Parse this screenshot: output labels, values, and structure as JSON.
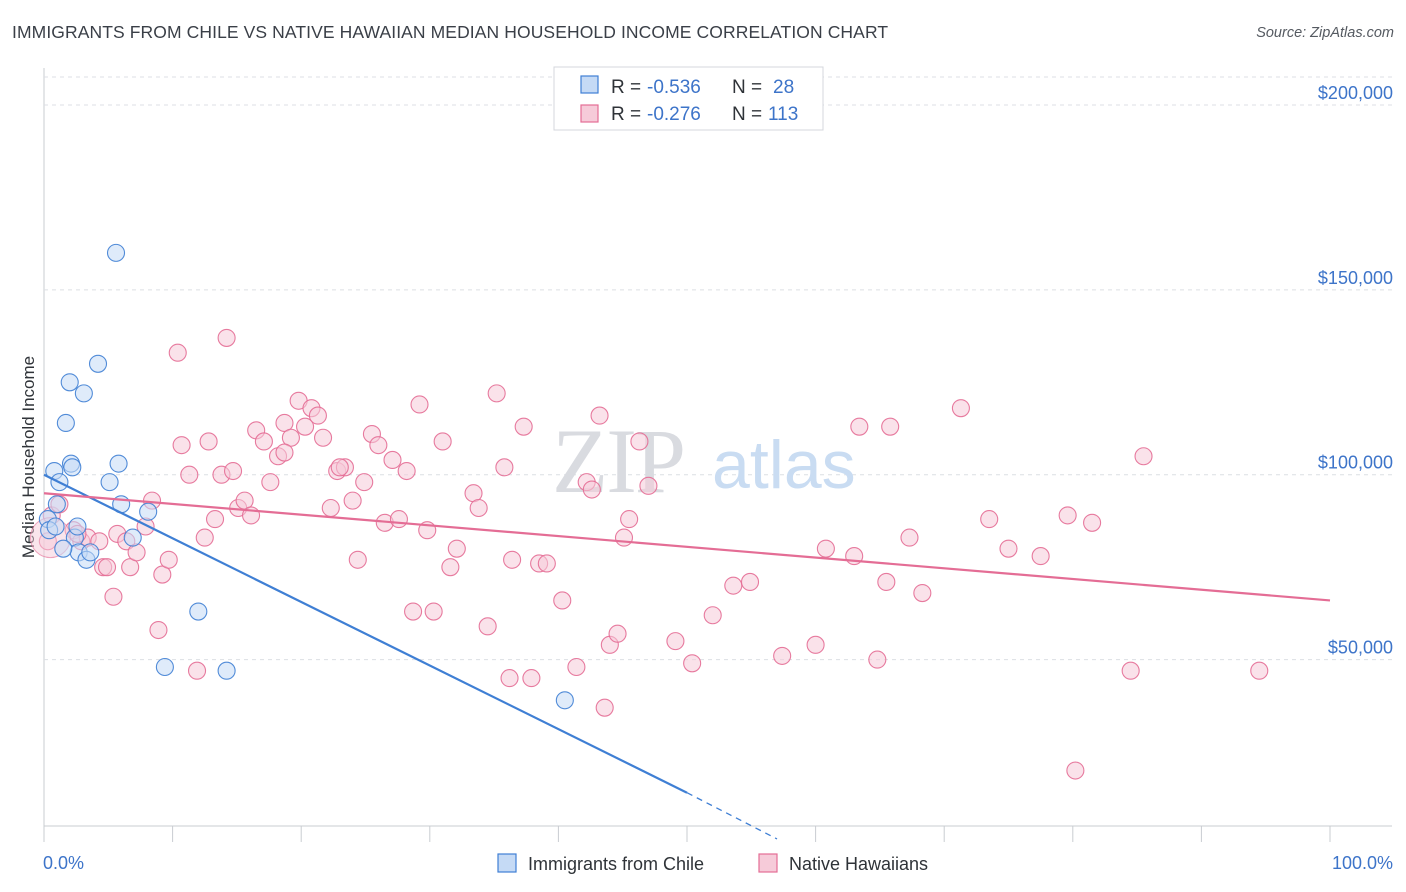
{
  "header": {
    "title": "IMMIGRANTS FROM CHILE VS NATIVE HAWAIIAN MEDIAN HOUSEHOLD INCOME CORRELATION CHART",
    "source": "Source: ZipAtlas.com"
  },
  "watermark": {
    "zip": "ZIP",
    "atlas": "atlas"
  },
  "colors": {
    "blue": "#3f7fd4",
    "blue_fill": "#c5daf5",
    "pink": "#e46d95",
    "pink_fill": "#f6cbd9",
    "tick_text": "#3d74c9",
    "grid": "#dcdfe4"
  },
  "legend": {
    "rows": [
      {
        "r_label": "R = ",
        "r_value": "-0.536",
        "n_label": "N = ",
        "n_value": "28"
      },
      {
        "r_label": "R = ",
        "r_value": "-0.276",
        "n_label": "N = ",
        "n_value": "113"
      }
    ]
  },
  "bottom_legend": {
    "series1": "Immigrants from Chile",
    "series2": "Native Hawaiians"
  },
  "chart_data": {
    "type": "scatter",
    "title": "IMMIGRANTS FROM CHILE VS NATIVE HAWAIIAN MEDIAN HOUSEHOLD INCOME CORRELATION CHART",
    "xlabel": "",
    "ylabel": "Median Household Income",
    "xlim": [
      0,
      100
    ],
    "ylim": [
      5000,
      210000
    ],
    "x_tick_labels": [
      "0.0%",
      "100.0%"
    ],
    "y_ticks": [
      50000,
      100000,
      150000,
      200000
    ],
    "y_tick_labels": [
      "$50,000",
      "$100,000",
      "$150,000",
      "$200,000"
    ],
    "grid": "horizontal dashed",
    "legend_position": "top-center",
    "series": [
      {
        "name": "Immigrants from Chile",
        "color": "#3f7fd4",
        "r": -0.536,
        "n": 28,
        "trend": {
          "x": [
            0,
            50
          ],
          "y": [
            100000,
            14000
          ],
          "extended_to": [
            57,
            1500
          ]
        },
        "points": [
          [
            0.3,
            88000
          ],
          [
            0.4,
            85000
          ],
          [
            0.8,
            101000
          ],
          [
            0.9,
            86000
          ],
          [
            1.0,
            92000
          ],
          [
            1.2,
            98000
          ],
          [
            1.7,
            114000
          ],
          [
            2.0,
            125000
          ],
          [
            2.1,
            103000
          ],
          [
            2.2,
            102000
          ],
          [
            2.4,
            83000
          ],
          [
            2.6,
            86000
          ],
          [
            2.7,
            79000
          ],
          [
            3.1,
            122000
          ],
          [
            3.3,
            77000
          ],
          [
            3.6,
            79000
          ],
          [
            4.2,
            130000
          ],
          [
            5.1,
            98000
          ],
          [
            5.6,
            160000
          ],
          [
            5.8,
            103000
          ],
          [
            6.0,
            92000
          ],
          [
            6.9,
            83000
          ],
          [
            8.1,
            90000
          ],
          [
            9.4,
            48000
          ],
          [
            12.0,
            63000
          ],
          [
            14.2,
            47000
          ],
          [
            40.5,
            39000
          ],
          [
            1.5,
            80000
          ]
        ]
      },
      {
        "name": "Native Hawaiians",
        "color": "#e46d95",
        "r": -0.276,
        "n": 113,
        "trend": {
          "x": [
            0,
            100
          ],
          "y": [
            95000,
            66000
          ]
        },
        "points": [
          [
            0.3,
            82000
          ],
          [
            0.6,
            89000
          ],
          [
            1.2,
            92000
          ],
          [
            2.3,
            85000
          ],
          [
            2.9,
            82000
          ],
          [
            3.4,
            83000
          ],
          [
            4.3,
            82000
          ],
          [
            4.6,
            75000
          ],
          [
            4.9,
            75000
          ],
          [
            5.4,
            67000
          ],
          [
            5.7,
            84000
          ],
          [
            6.4,
            82000
          ],
          [
            6.7,
            75000
          ],
          [
            7.2,
            79000
          ],
          [
            7.9,
            86000
          ],
          [
            8.4,
            93000
          ],
          [
            8.9,
            58000
          ],
          [
            9.2,
            73000
          ],
          [
            9.7,
            77000
          ],
          [
            10.4,
            133000
          ],
          [
            10.7,
            108000
          ],
          [
            11.3,
            100000
          ],
          [
            11.9,
            47000
          ],
          [
            12.5,
            83000
          ],
          [
            12.8,
            109000
          ],
          [
            13.3,
            88000
          ],
          [
            13.8,
            100000
          ],
          [
            14.2,
            137000
          ],
          [
            14.7,
            101000
          ],
          [
            15.1,
            91000
          ],
          [
            15.6,
            93000
          ],
          [
            16.1,
            89000
          ],
          [
            16.5,
            112000
          ],
          [
            17.1,
            109000
          ],
          [
            17.6,
            98000
          ],
          [
            18.2,
            105000
          ],
          [
            18.7,
            114000
          ],
          [
            19.2,
            110000
          ],
          [
            19.8,
            120000
          ],
          [
            20.3,
            113000
          ],
          [
            20.8,
            118000
          ],
          [
            21.3,
            116000
          ],
          [
            21.7,
            110000
          ],
          [
            22.3,
            91000
          ],
          [
            22.8,
            101000
          ],
          [
            23.4,
            102000
          ],
          [
            24.0,
            93000
          ],
          [
            24.4,
            77000
          ],
          [
            24.9,
            98000
          ],
          [
            25.5,
            111000
          ],
          [
            26.0,
            108000
          ],
          [
            26.5,
            87000
          ],
          [
            27.1,
            104000
          ],
          [
            27.6,
            88000
          ],
          [
            28.2,
            101000
          ],
          [
            28.7,
            63000
          ],
          [
            29.2,
            119000
          ],
          [
            29.8,
            85000
          ],
          [
            30.3,
            63000
          ],
          [
            31.0,
            109000
          ],
          [
            31.6,
            75000
          ],
          [
            32.1,
            80000
          ],
          [
            33.4,
            95000
          ],
          [
            33.8,
            91000
          ],
          [
            34.5,
            59000
          ],
          [
            35.2,
            122000
          ],
          [
            35.8,
            102000
          ],
          [
            36.4,
            77000
          ],
          [
            37.3,
            113000
          ],
          [
            37.9,
            45000
          ],
          [
            38.5,
            76000
          ],
          [
            39.1,
            76000
          ],
          [
            40.3,
            66000
          ],
          [
            41.4,
            48000
          ],
          [
            42.2,
            98000
          ],
          [
            42.6,
            96000
          ],
          [
            43.2,
            116000
          ],
          [
            43.6,
            37000
          ],
          [
            44.0,
            54000
          ],
          [
            44.6,
            57000
          ],
          [
            45.1,
            83000
          ],
          [
            45.5,
            88000
          ],
          [
            46.3,
            109000
          ],
          [
            47.0,
            97000
          ],
          [
            49.1,
            55000
          ],
          [
            50.4,
            49000
          ],
          [
            52.0,
            62000
          ],
          [
            53.6,
            70000
          ],
          [
            54.9,
            71000
          ],
          [
            57.4,
            51000
          ],
          [
            60.0,
            54000
          ],
          [
            60.8,
            80000
          ],
          [
            63.0,
            78000
          ],
          [
            63.4,
            113000
          ],
          [
            64.8,
            50000
          ],
          [
            65.5,
            71000
          ],
          [
            65.8,
            113000
          ],
          [
            67.3,
            83000
          ],
          [
            68.3,
            68000
          ],
          [
            71.3,
            118000
          ],
          [
            73.5,
            88000
          ],
          [
            75.0,
            80000
          ],
          [
            77.5,
            78000
          ],
          [
            79.6,
            89000
          ],
          [
            80.2,
            20000
          ],
          [
            81.5,
            87000
          ],
          [
            84.5,
            47000
          ],
          [
            85.5,
            105000
          ],
          [
            94.5,
            47000
          ],
          [
            2.6,
            84000
          ],
          [
            18.7,
            106000
          ],
          [
            36.2,
            45000
          ],
          [
            23.0,
            102000
          ]
        ]
      }
    ]
  }
}
